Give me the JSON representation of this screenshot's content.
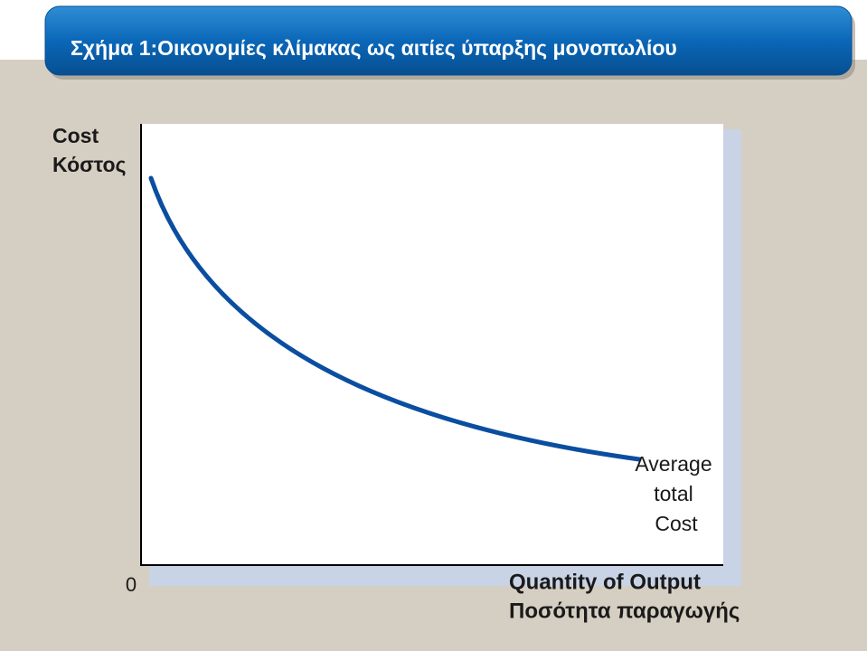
{
  "title": "Σχήμα 1:Οικονομίες κλίμακας ως αιτίες ύπαρξης μονοπωλίου",
  "y_axis_label": [
    "Cost",
    "Κόστος"
  ],
  "origin_label": "0",
  "curve_label": [
    "Average",
    "total",
    "Cost"
  ],
  "x_axis_label": [
    "Quantity of Output",
    "Ποσότητα παραγωγής"
  ]
}
